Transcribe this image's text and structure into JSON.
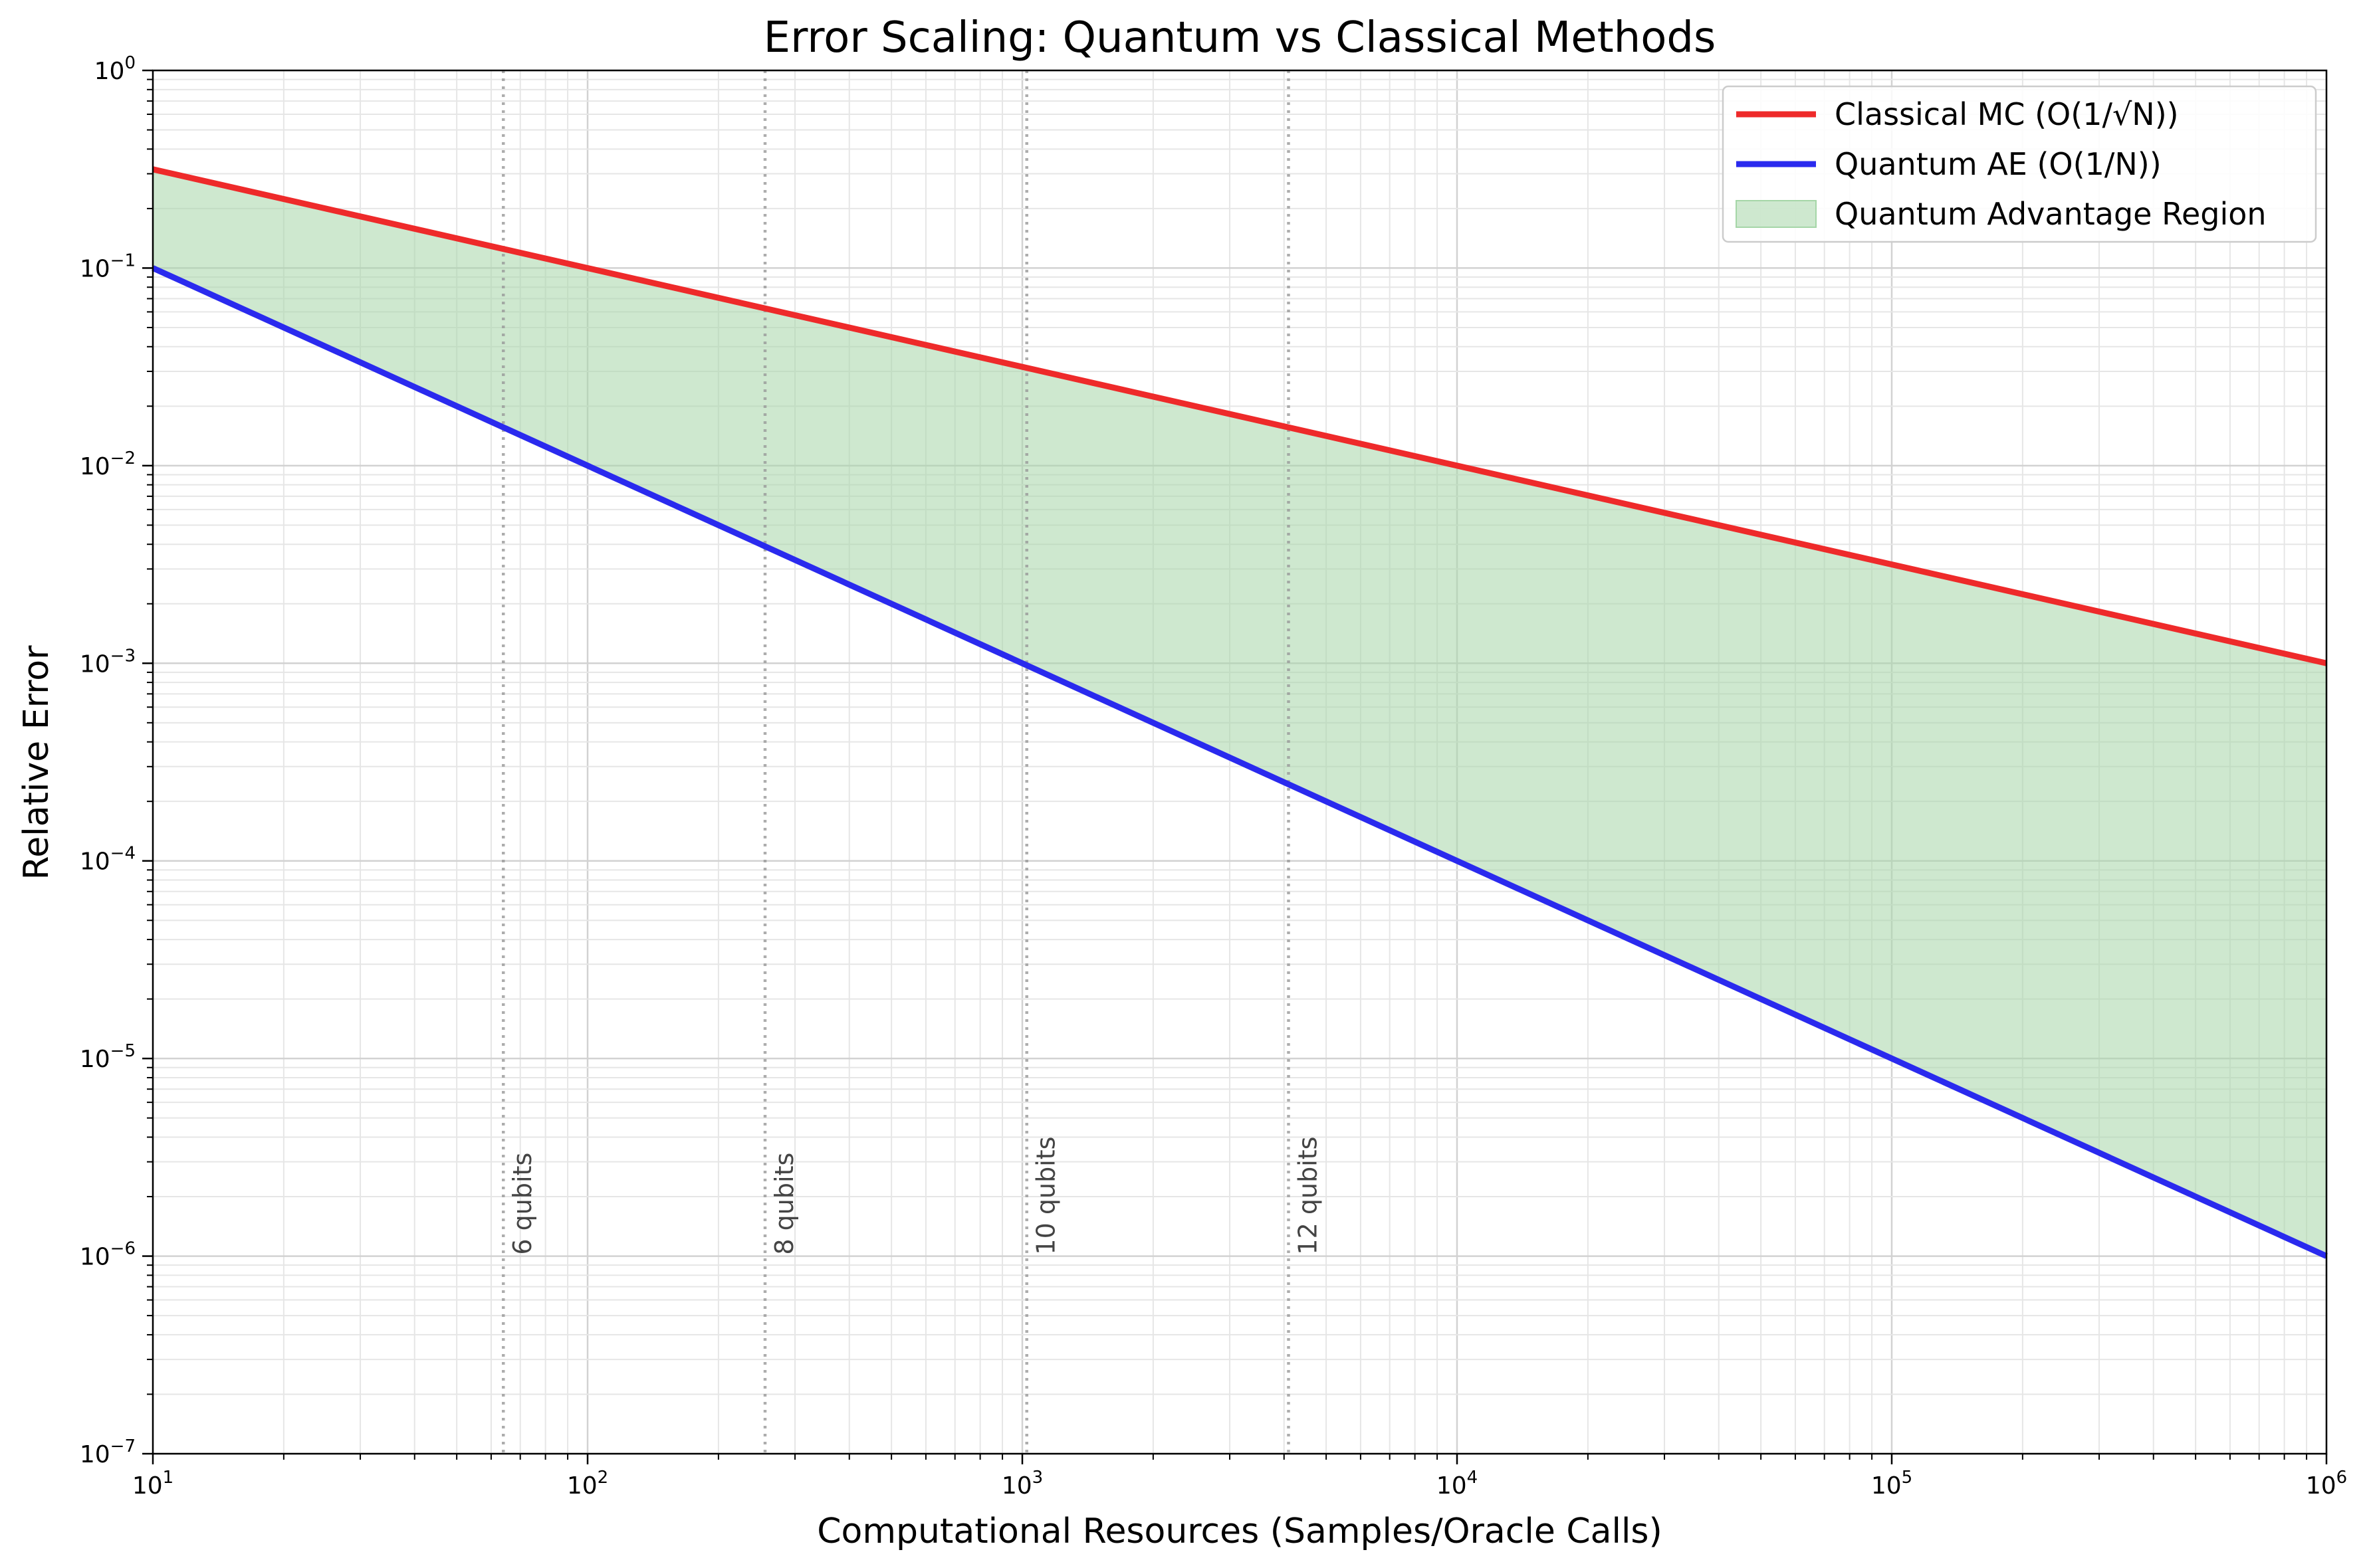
{
  "chart_data": {
    "type": "line",
    "title": "Error Scaling: Quantum vs Classical Methods",
    "xlabel": "Computational Resources (Samples/Oracle Calls)",
    "ylabel": "Relative Error",
    "xscale": "log",
    "yscale": "log",
    "xlim": [
      10,
      1000000
    ],
    "ylim": [
      1e-07,
      1
    ],
    "grid": true,
    "legend_position": "top-right",
    "x_ticks": [
      {
        "base": "10",
        "exp": "1"
      },
      {
        "base": "10",
        "exp": "2"
      },
      {
        "base": "10",
        "exp": "3"
      },
      {
        "base": "10",
        "exp": "4"
      },
      {
        "base": "10",
        "exp": "5"
      },
      {
        "base": "10",
        "exp": "6"
      }
    ],
    "y_ticks": [
      {
        "base": "10",
        "exp": "0"
      },
      {
        "base": "10",
        "exp": "−1"
      },
      {
        "base": "10",
        "exp": "−2"
      },
      {
        "base": "10",
        "exp": "−3"
      },
      {
        "base": "10",
        "exp": "−4"
      },
      {
        "base": "10",
        "exp": "−5"
      },
      {
        "base": "10",
        "exp": "−6"
      },
      {
        "base": "10",
        "exp": "−7"
      }
    ],
    "x": [
      10,
      1000000
    ],
    "series": [
      {
        "name": "Classical MC (O(1/√N))",
        "color": "#ee2a2a",
        "values": [
          0.316,
          0.001
        ]
      },
      {
        "name": "Quantum AE (O(1/N))",
        "color": "#2a2aee",
        "values": [
          0.1,
          1e-06
        ]
      }
    ],
    "fill_region": {
      "name": "Quantum Advantage Region",
      "color": "#a5d6a7"
    },
    "qubit_markers": [
      {
        "x": 64,
        "label": "6 qubits"
      },
      {
        "x": 256,
        "label": "8 qubits"
      },
      {
        "x": 1024,
        "label": "10 qubits"
      },
      {
        "x": 4096,
        "label": "12 qubits"
      }
    ]
  }
}
